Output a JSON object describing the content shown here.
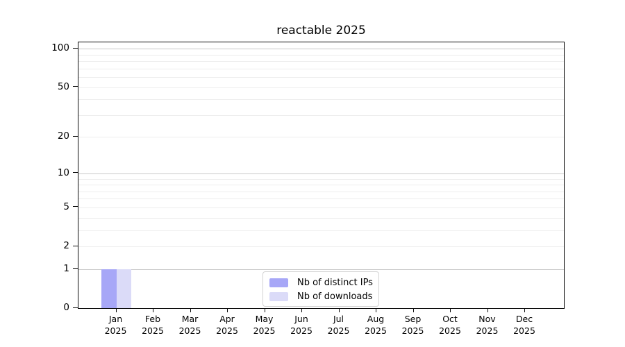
{
  "chart_data": {
    "type": "bar",
    "title": "reactable 2025",
    "categories": [
      "Jan 2025",
      "Feb 2025",
      "Mar 2025",
      "Apr 2025",
      "May 2025",
      "Jun 2025",
      "Jul 2025",
      "Aug 2025",
      "Sep 2025",
      "Oct 2025",
      "Nov 2025",
      "Dec 2025"
    ],
    "series": [
      {
        "name": "Nb of distinct IPs",
        "color": "#a7a7f7",
        "values": [
          1,
          0,
          0,
          0,
          0,
          0,
          0,
          0,
          0,
          0,
          0,
          0
        ]
      },
      {
        "name": "Nb of downloads",
        "color": "#dbdbf8",
        "values": [
          1,
          0,
          0,
          0,
          0,
          0,
          0,
          0,
          0,
          0,
          0,
          0
        ]
      }
    ],
    "yscale": "log1p",
    "ylim": [
      0,
      112
    ],
    "y_tick_values": [
      100,
      50,
      20,
      10,
      5,
      2,
      1,
      0
    ],
    "y_tick_labels": [
      "100",
      "50",
      "20",
      "10",
      "5",
      "2",
      "1",
      "0"
    ],
    "y_minor_grid_values": [
      2,
      3,
      4,
      5,
      6,
      7,
      8,
      9,
      20,
      30,
      40,
      50,
      60,
      70,
      80,
      90
    ],
    "y_major_grid_values": [
      1,
      10,
      100
    ],
    "xlabel": "",
    "ylabel": "",
    "grid": true,
    "legend_position": "lower center inside"
  },
  "colors": {
    "major_grid": "#c8c8c8",
    "minor_grid": "#ededed",
    "axis": "#0a0a0a",
    "legend_border": "#d2d2d2",
    "background": "#ffffff"
  }
}
